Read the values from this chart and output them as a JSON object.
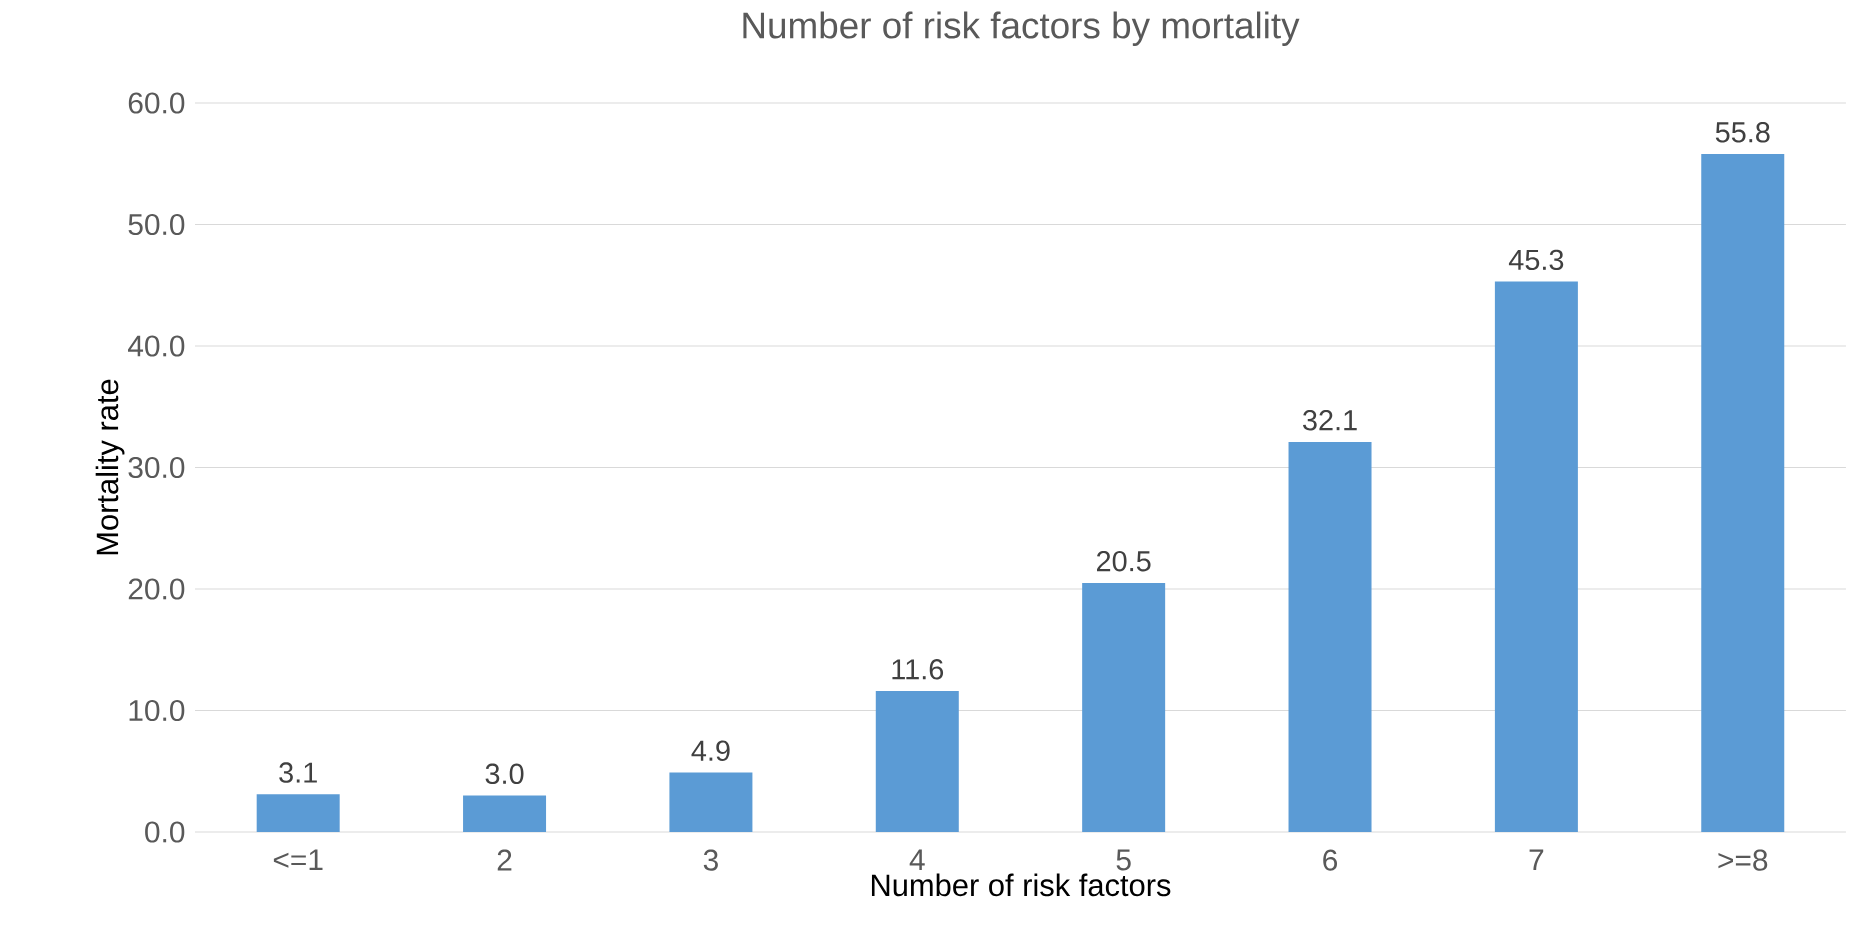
{
  "chart_data": {
    "type": "bar",
    "title": "Number of risk factors by mortality",
    "xlabel": "Number of risk factors",
    "ylabel": "Mortality rate",
    "categories": [
      "<=1",
      "2",
      "3",
      "4",
      "5",
      "6",
      "7",
      ">=8"
    ],
    "values": [
      3.1,
      3.0,
      4.9,
      11.6,
      20.5,
      32.1,
      45.3,
      55.8
    ],
    "value_labels": [
      "3.1",
      "3.0",
      "4.9",
      "11.6",
      "20.5",
      "32.1",
      "45.3",
      "55.8"
    ],
    "color": "#5b9bd5",
    "ylim": [
      0,
      60
    ],
    "yticks": [
      {
        "value": 0,
        "label": "0.0"
      },
      {
        "value": 10,
        "label": "10.0"
      },
      {
        "value": 20,
        "label": "20.0"
      },
      {
        "value": 30,
        "label": "30.0"
      },
      {
        "value": 40,
        "label": "40.0"
      },
      {
        "value": 50,
        "label": "50.0"
      },
      {
        "value": 60,
        "label": "60.0"
      }
    ],
    "grid": "y"
  }
}
